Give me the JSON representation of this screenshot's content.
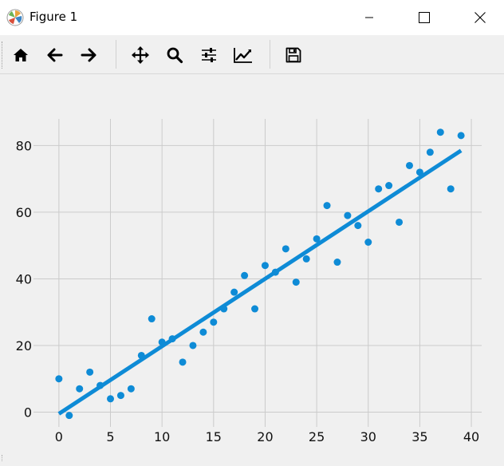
{
  "window": {
    "title": "Figure 1"
  },
  "icons": {
    "app": "matplotlib-logo-icon",
    "minimize": "minimize-icon",
    "maximize": "maximize-icon",
    "close": "close-icon"
  },
  "toolbar": {
    "buttons": [
      {
        "name": "home",
        "icon": "home-icon"
      },
      {
        "name": "back",
        "icon": "arrow-left-icon"
      },
      {
        "name": "forward",
        "icon": "arrow-right-icon"
      },
      {
        "name": "pan",
        "icon": "move-icon"
      },
      {
        "name": "zoom",
        "icon": "magnifier-icon"
      },
      {
        "name": "configure-subplots",
        "icon": "sliders-icon"
      },
      {
        "name": "edit-axis",
        "icon": "chart-line-icon"
      },
      {
        "name": "save",
        "icon": "floppy-disk-icon"
      }
    ]
  },
  "chart_data": {
    "type": "scatter",
    "title": "",
    "xlabel": "",
    "ylabel": "",
    "xlim": [
      -2,
      41
    ],
    "ylim": [
      -3,
      88
    ],
    "xticks": [
      0,
      5,
      10,
      15,
      20,
      25,
      30,
      35,
      40
    ],
    "yticks": [
      0,
      20,
      40,
      60,
      80
    ],
    "grid": true,
    "color": "#0e8bd6",
    "points": {
      "x": [
        0,
        1,
        2,
        3,
        4,
        5,
        6,
        7,
        8,
        9,
        10,
        11,
        12,
        13,
        14,
        15,
        16,
        17,
        18,
        19,
        20,
        21,
        22,
        23,
        24,
        25,
        26,
        27,
        28,
        29,
        30,
        31,
        32,
        33,
        34,
        35,
        36,
        37,
        38,
        39
      ],
      "y": [
        10,
        -1,
        7,
        12,
        8,
        4,
        5,
        7,
        17,
        28,
        21,
        22,
        15,
        20,
        24,
        27,
        31,
        36,
        41,
        31,
        44,
        42,
        49,
        39,
        46,
        52,
        62,
        45,
        59,
        56,
        51,
        67,
        68,
        57,
        74,
        72,
        78,
        84,
        67,
        83
      ]
    },
    "fit_line": {
      "x": [
        0,
        39
      ],
      "y": [
        -0.5,
        78.5
      ]
    }
  }
}
